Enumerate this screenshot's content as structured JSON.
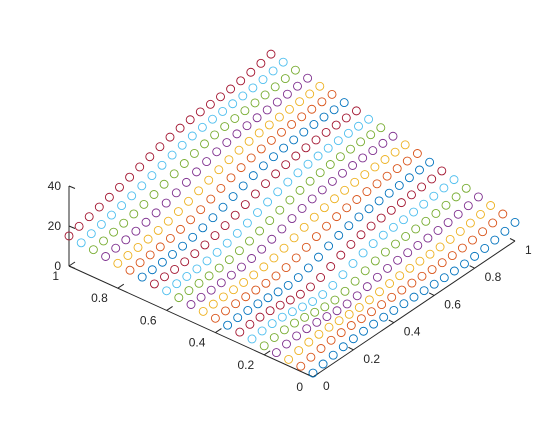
{
  "chart_data": {
    "type": "scatter",
    "title": "",
    "xlabel": "",
    "ylabel": "",
    "zlabel": "",
    "marker": "circle",
    "grid": false,
    "xlim": [
      0,
      1
    ],
    "ylim": [
      0,
      1
    ],
    "zlim": [
      0,
      40
    ],
    "x_ticks": [
      "0",
      "0.2",
      "0.4",
      "0.6",
      "0.8",
      "1"
    ],
    "y_ticks": [
      "0",
      "0.2",
      "0.4",
      "0.6",
      "0.8",
      "1"
    ],
    "z_ticks": [
      "0",
      "20",
      "40"
    ],
    "colors": [
      "#0072BD",
      "#D95319",
      "#EDB120",
      "#7E2F8E",
      "#77AC30",
      "#4DBEEE",
      "#A2142F"
    ],
    "grid_points": {
      "x": [
        0,
        0.05,
        0.1,
        0.15,
        0.2,
        0.25,
        0.3,
        0.35,
        0.4,
        0.45,
        0.5,
        0.55,
        0.6,
        0.65,
        0.7,
        0.75,
        0.8,
        0.85,
        0.9,
        0.95,
        1
      ],
      "y": [
        0,
        0.05,
        0.1,
        0.15,
        0.2,
        0.25,
        0.3,
        0.35,
        0.4,
        0.45,
        0.5,
        0.55,
        0.6,
        0.65,
        0.7,
        0.75,
        0.8,
        0.85,
        0.9,
        0.95,
        1
      ]
    },
    "corner_values": {
      "x0_y0": 2,
      "x1_y0": 10,
      "x0_y1": 15,
      "x1_y1": 38
    },
    "peak": {
      "x": 1,
      "y": 1,
      "z": 38
    },
    "dip": {
      "x": 0.35,
      "y": 0.25,
      "z": 0
    }
  }
}
